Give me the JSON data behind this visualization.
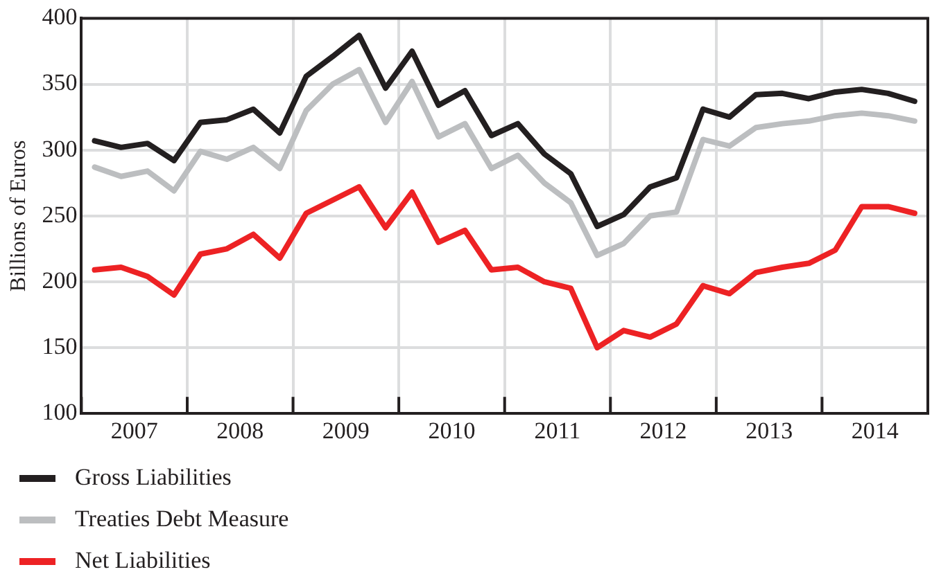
{
  "chart_data": {
    "type": "line",
    "ylabel": "Billions of Euros",
    "x": [
      2007.125,
      2007.375,
      2007.625,
      2007.875,
      2008.125,
      2008.375,
      2008.625,
      2008.875,
      2009.125,
      2009.375,
      2009.625,
      2009.875,
      2010.125,
      2010.375,
      2010.625,
      2010.875,
      2011.125,
      2011.375,
      2011.625,
      2011.875,
      2012.125,
      2012.375,
      2012.625,
      2012.875,
      2013.125,
      2013.375,
      2013.625,
      2013.875,
      2014.125,
      2014.375,
      2014.625,
      2014.875
    ],
    "xlim": [
      2007,
      2015
    ],
    "xticks": [
      {
        "value": 2007,
        "label": null
      },
      {
        "value": 2007.5,
        "label": "2007"
      },
      {
        "value": 2008,
        "label": null
      },
      {
        "value": 2008.5,
        "label": "2008"
      },
      {
        "value": 2009,
        "label": null
      },
      {
        "value": 2009.5,
        "label": "2009"
      },
      {
        "value": 2010,
        "label": null
      },
      {
        "value": 2010.5,
        "label": "2010"
      },
      {
        "value": 2011,
        "label": null
      },
      {
        "value": 2011.5,
        "label": "2011"
      },
      {
        "value": 2012,
        "label": null
      },
      {
        "value": 2012.5,
        "label": "2012"
      },
      {
        "value": 2013,
        "label": null
      },
      {
        "value": 2013.5,
        "label": "2013"
      },
      {
        "value": 2014,
        "label": null
      },
      {
        "value": 2014.5,
        "label": "2014"
      },
      {
        "value": 2015,
        "label": null
      }
    ],
    "ylim": [
      100,
      400
    ],
    "yticks": [
      100,
      150,
      200,
      250,
      300,
      350,
      400
    ],
    "grid": true,
    "legend": "bottom",
    "marker": "none",
    "line_style": "solid",
    "series": [
      {
        "name": "Gross Liabilities",
        "color": "#231f20",
        "values": [
          307,
          302,
          305,
          292,
          321,
          323,
          331,
          313,
          356,
          371,
          387,
          347,
          375,
          334,
          345,
          311,
          320,
          297,
          282,
          242,
          251,
          272,
          279,
          331,
          325,
          342,
          343,
          339,
          344,
          346,
          343,
          337
        ]
      },
      {
        "name": "Treaties Debt Measure",
        "color": "#bcbec0",
        "values": [
          287,
          280,
          284,
          269,
          299,
          293,
          302,
          286,
          330,
          350,
          361,
          321,
          352,
          310,
          320,
          286,
          296,
          275,
          260,
          220,
          229,
          250,
          253,
          308,
          303,
          317,
          320,
          322,
          326,
          328,
          326,
          322
        ]
      },
      {
        "name": "Net Liabilities",
        "color": "#ed2224",
        "values": [
          209,
          211,
          204,
          190,
          221,
          225,
          236,
          218,
          252,
          262,
          272,
          241,
          268,
          230,
          239,
          209,
          211,
          200,
          195,
          150,
          163,
          158,
          168,
          197,
          191,
          207,
          211,
          214,
          224,
          257,
          257,
          252
        ]
      }
    ]
  }
}
